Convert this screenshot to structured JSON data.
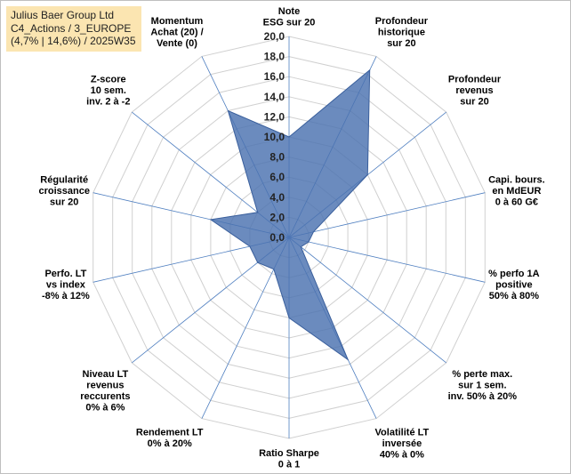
{
  "title": {
    "line1": "Julius Baer Group Ltd",
    "line2": "C4_Actions / 3_EUROPE",
    "line3": "(4,7% | 14,6%) / 2025W35"
  },
  "colors": {
    "fill": "#4a72b0",
    "stroke": "#3a5f9c",
    "grid": "#d0d0d0",
    "spoke": "#4f7fc0",
    "title_bg": "#fbe5b1"
  },
  "chart_data": {
    "type": "radar",
    "scale": {
      "min": 0,
      "max": 20,
      "step": 2
    },
    "tick_labels": [
      "0,0",
      "2,0",
      "4,0",
      "6,0",
      "8,0",
      "10,0",
      "12,0",
      "14,0",
      "16,0",
      "18,0",
      "20,0"
    ],
    "axes": [
      {
        "lines": [
          "Note",
          "ESG sur 20"
        ]
      },
      {
        "lines": [
          "Profondeur",
          "historique",
          "sur 20"
        ]
      },
      {
        "lines": [
          "Profondeur",
          "revenus",
          "sur 20"
        ]
      },
      {
        "lines": [
          "Capi. bours.",
          "en MdEUR",
          "0 à 60 G€"
        ]
      },
      {
        "lines": [
          "% perfo 1A",
          "positive",
          "50% à 80%"
        ]
      },
      {
        "lines": [
          "% perte max.",
          "sur 1 sem.",
          "inv. 50% à 20%"
        ]
      },
      {
        "lines": [
          "Volatilité LT",
          "inversée",
          "40% à 0%"
        ]
      },
      {
        "lines": [
          "Ratio Sharpe",
          "0 à 1"
        ]
      },
      {
        "lines": [
          "Rendement LT",
          "0% à 20%"
        ]
      },
      {
        "lines": [
          "Niveau LT",
          "revenus",
          "reccurents",
          "0% à 6%"
        ]
      },
      {
        "lines": [
          "Perfo. LT",
          "vs index",
          "-8% à 12%"
        ]
      },
      {
        "lines": [
          "Régularité",
          "croissance",
          "sur 20"
        ]
      },
      {
        "lines": [
          "Z-score",
          "10 sem.",
          "inv. 2 à -2"
        ]
      },
      {
        "lines": [
          "Momentum",
          "Achat (20) /",
          "Vente (0)"
        ]
      }
    ],
    "values": [
      10.0,
      18.5,
      10.0,
      2.5,
      2.0,
      1.5,
      13.5,
      8.0,
      3.5,
      4.0,
      4.0,
      8.0,
      4.0,
      14.0
    ]
  }
}
